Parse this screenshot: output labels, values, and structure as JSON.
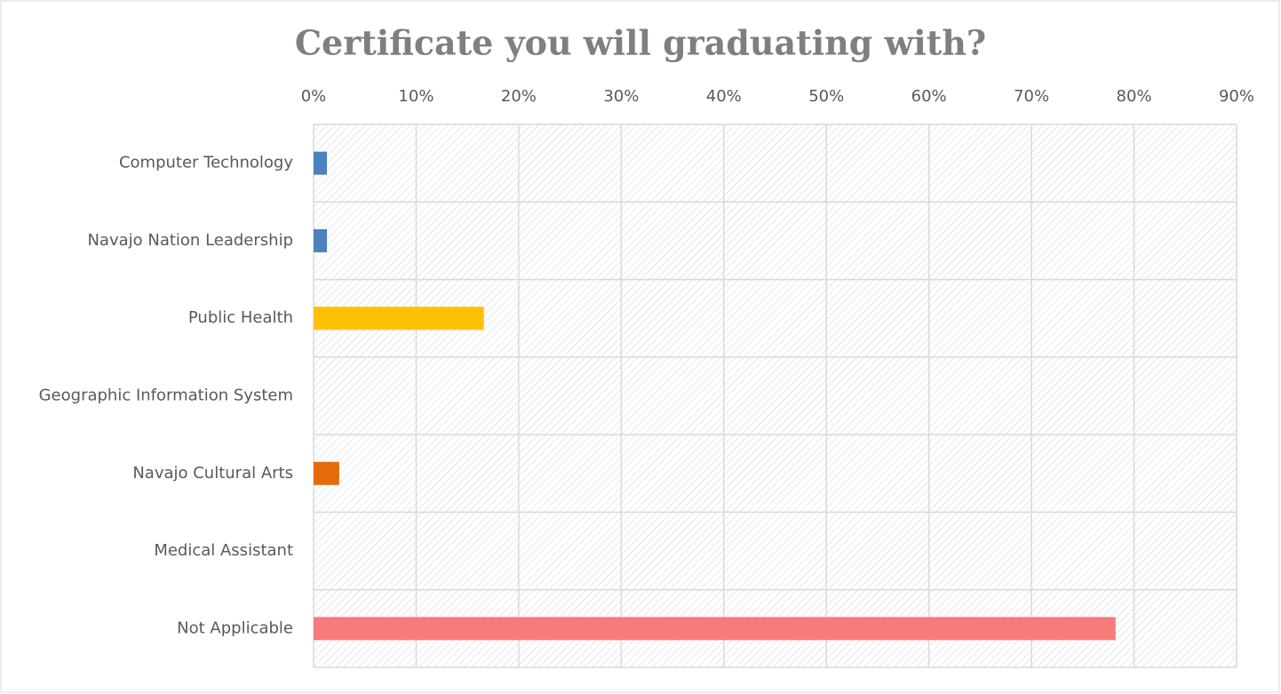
{
  "chart_data": {
    "type": "barh",
    "title": "Certificate you will graduating with?",
    "categories": [
      "Computer Technology",
      "Navajo Nation Leadership",
      "Public Health",
      "Geographic Information System",
      "Navajo Cultural Arts",
      "Medical Assistant",
      "Not Applicable"
    ],
    "values": [
      1.3,
      1.3,
      16.6,
      0,
      2.5,
      0,
      78.2
    ],
    "colors": [
      "#4f81bd",
      "#4f81bd",
      "#ffc000",
      "#9bbb59",
      "#e36c09",
      "#8064a2",
      "#f77b7b"
    ],
    "xlim": [
      0,
      90
    ],
    "xticks": [
      {
        "value": 0,
        "label": "0%"
      },
      {
        "value": 10,
        "label": "10%"
      },
      {
        "value": 20,
        "label": "20%"
      },
      {
        "value": 30,
        "label": "30%"
      },
      {
        "value": 40,
        "label": "40%"
      },
      {
        "value": 50,
        "label": "50%"
      },
      {
        "value": 60,
        "label": "60%"
      },
      {
        "value": 70,
        "label": "70%"
      },
      {
        "value": 80,
        "label": "80%"
      },
      {
        "value": 90,
        "label": "90%"
      }
    ],
    "grid": true
  }
}
